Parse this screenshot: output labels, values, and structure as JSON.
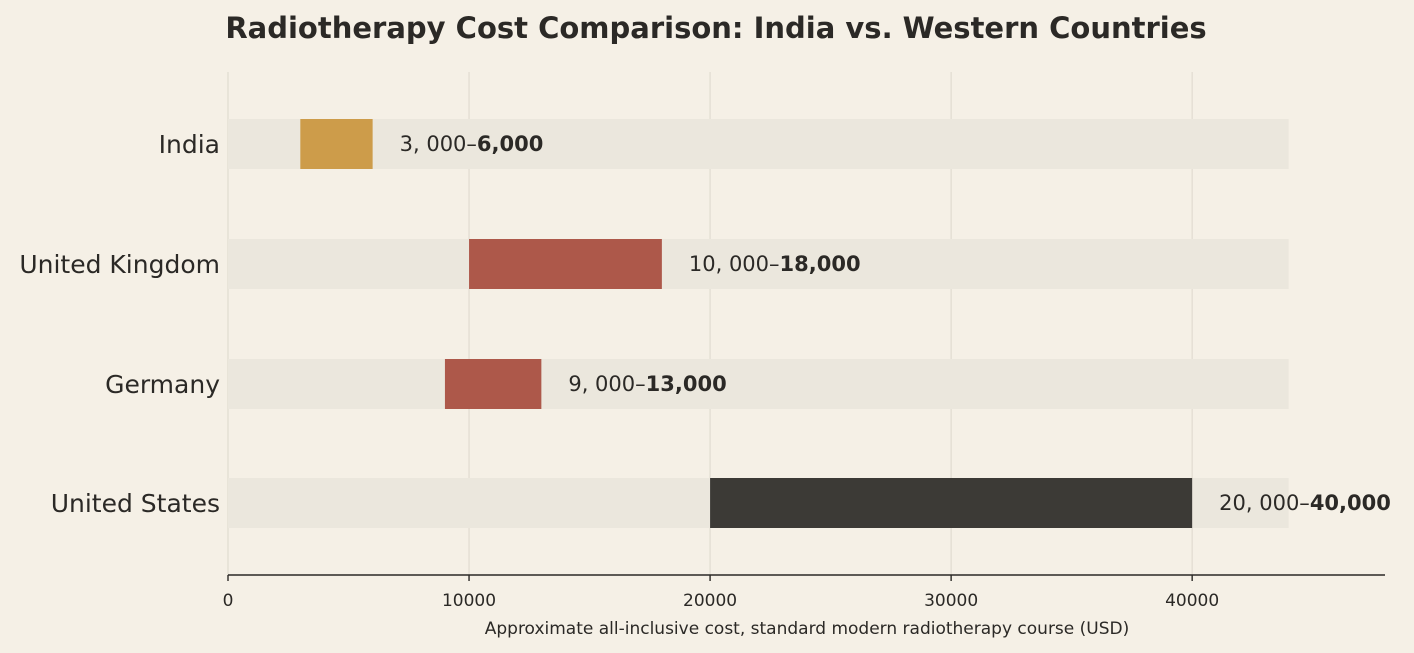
{
  "chart_data": {
    "type": "bar",
    "title": "Radiotherapy Cost Comparison: India vs. Western Countries",
    "xlabel": "Approximate all-inclusive cost, standard modern radiotherapy course (USD)",
    "ylabel": "",
    "orientation": "horizontal",
    "xlim": [
      0,
      48000
    ],
    "track_max": 44000,
    "x_ticks": [
      0,
      10000,
      20000,
      30000,
      40000
    ],
    "x_tick_labels": [
      "0",
      "10000",
      "20000",
      "30000",
      "40000"
    ],
    "grid": "vertical",
    "categories": [
      "India",
      "United Kingdom",
      "Germany",
      "United States"
    ],
    "series": [
      {
        "low": [
          3000,
          10000,
          9000,
          20000
        ],
        "high": [
          6000,
          18000,
          13000,
          40000
        ],
        "colors": [
          "#cd9c4a",
          "#ad584a",
          "#ad584a",
          "#3c3a36"
        ],
        "value_labels": [
          {
            "prefix": "3, 000–",
            "bold": "6,000"
          },
          {
            "prefix": "10, 000–",
            "bold": "18,000"
          },
          {
            "prefix": "9, 000–",
            "bold": "13,000"
          },
          {
            "prefix": "20, 000–",
            "bold": "40,000"
          }
        ]
      }
    ],
    "colors": {
      "background": "#f5f0e6",
      "track": "#ebe7dd",
      "axis": "#2b2926",
      "grid": "#e2ddd2"
    }
  }
}
